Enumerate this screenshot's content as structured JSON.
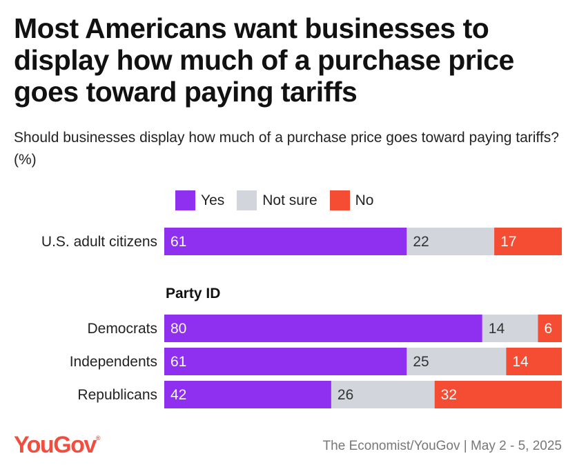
{
  "header": {
    "title": "Most Americans want businesses to display how much of a purchase price goes toward paying tariffs",
    "subtitle": "Should businesses display how much of a purchase price goes toward paying tariffs? (%)"
  },
  "legend": [
    {
      "label": "Yes",
      "color": "#8f2ff0"
    },
    {
      "label": "Not sure",
      "color": "#d2d5dc"
    },
    {
      "label": "No",
      "color": "#f44d33"
    }
  ],
  "chart_data": {
    "type": "bar",
    "orientation": "horizontal",
    "stacked": true,
    "title": "Most Americans want businesses to display how much of a purchase price goes toward paying tariffs",
    "subtitle": "Should businesses display how much of a purchase price goes toward paying tariffs? (%)",
    "unit": "%",
    "groups": [
      {
        "heading": "",
        "categories": [
          "U.S. adult citizens"
        ]
      },
      {
        "heading": "Party ID",
        "categories": [
          "Democrats",
          "Independents",
          "Republicans"
        ]
      }
    ],
    "categories": [
      "U.S. adult citizens",
      "Democrats",
      "Independents",
      "Republicans"
    ],
    "series": [
      {
        "name": "Yes",
        "color": "#8f2ff0",
        "values": [
          61,
          80,
          61,
          42
        ]
      },
      {
        "name": "Not sure",
        "color": "#d2d5dc",
        "values": [
          22,
          14,
          25,
          26
        ]
      },
      {
        "name": "No",
        "color": "#f44d33",
        "values": [
          17,
          6,
          14,
          32
        ]
      }
    ],
    "xlim": [
      0,
      100
    ]
  },
  "footer": {
    "brand": "YouGov",
    "source": "The Economist/YouGov | May 2 - 5, 2025"
  }
}
